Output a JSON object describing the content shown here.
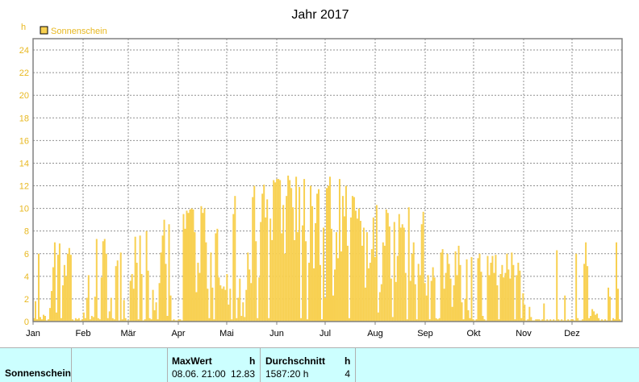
{
  "chart_data": {
    "type": "bar",
    "title": "Jahr 2017",
    "ylabel": "h",
    "ylim": [
      0,
      25
    ],
    "yticks": [
      0,
      2,
      4,
      6,
      8,
      10,
      12,
      14,
      16,
      18,
      20,
      22,
      24
    ],
    "months": [
      "Jan",
      "Feb",
      "Mär",
      "Apr",
      "Mai",
      "Jun",
      "Jul",
      "Aug",
      "Sep",
      "Okt",
      "Nov",
      "Dez"
    ],
    "grid": true,
    "legend_position": "top-left",
    "series": [
      {
        "name": "Sonnenschein",
        "color": "#f8d050",
        "note_resolution": "daily totals (hourly spikes in original)",
        "values": [
          0.3,
          1.8,
          0.2,
          6.0,
          0.4,
          0.2,
          0.6,
          0.5,
          0.1,
          0.2,
          1.2,
          2.7,
          4.8,
          7.0,
          0.8,
          5.9,
          6.9,
          0.3,
          3.2,
          5.0,
          4.0,
          6.0,
          6.5,
          5.9,
          0.2,
          0.1,
          0.3,
          0.2,
          0.3,
          0.1,
          0.2,
          0.8,
          0.3,
          2.1,
          4.1,
          0.2,
          0.5,
          0.4,
          2.2,
          7.3,
          0.3,
          0.2,
          3.9,
          7.1,
          7.3,
          6.0,
          0.3,
          0.9,
          2.1,
          0.3,
          0.2,
          4.9,
          5.4,
          0.1,
          6.1,
          0.2,
          1.9,
          0.3,
          0.1,
          0.1,
          3.6,
          4.2,
          2.9,
          7.5,
          5.2,
          0.2,
          7.6,
          4.2,
          0.1,
          0.2,
          8.0,
          4.5,
          0.3,
          0.2,
          2.8,
          1.0,
          1.7,
          0.2,
          3.4,
          6.1,
          7.6,
          9.0,
          5.1,
          0.5,
          8.6,
          2.3,
          0.1,
          0.2,
          0.1,
          0.1,
          0.2,
          0.2,
          0.1,
          9.5,
          8.2,
          9.8,
          9.6,
          9.9,
          10.0,
          9.9,
          7.9,
          2.6,
          5.2,
          4.3,
          10.2,
          9.6,
          10.0,
          7.0,
          2.9,
          0.3,
          6.1,
          3.0,
          0.2,
          7.8,
          8.2,
          3.9,
          3.2,
          2.9,
          3.1,
          2.8,
          4.2,
          1.5,
          2.9,
          0.2,
          9.5,
          11.1,
          0.3,
          2.1,
          3.8,
          0.5,
          1.7,
          0.4,
          2.8,
          6.1,
          4.6,
          3.4,
          11.0,
          12.0,
          7.1,
          0.3,
          3.9,
          8.8,
          11.3,
          12.1,
          9.2,
          10.8,
          0.3,
          9.1,
          7.2,
          12.5,
          12.3,
          12.6,
          12.6,
          12.5,
          7.8,
          10.3,
          6.0,
          11.1,
          12.9,
          12.5,
          11.8,
          10.1,
          7.2,
          12.8,
          7.9,
          11.9,
          0.3,
          8.5,
          12.6,
          7.1,
          0.2,
          5.2,
          12.0,
          10.2,
          4.7,
          8.7,
          11.3,
          11.7,
          5.0,
          0.2,
          8.3,
          2.1,
          11.8,
          12.0,
          12.8,
          8.2,
          2.3,
          4.6,
          7.9,
          5.6,
          12.6,
          6.2,
          11.1,
          9.3,
          12.0,
          6.7,
          0.3,
          9.2,
          11.1,
          11.0,
          9.8,
          9.1,
          10.0,
          8.9,
          6.7,
          8.3,
          3.0,
          7.9,
          4.7,
          5.2,
          6.4,
          9.2,
          5.7,
          10.3,
          0.8,
          2.6,
          3.3,
          7.0,
          6.7,
          9.9,
          9.6,
          8.4,
          3.8,
          0.4,
          8.8,
          3.5,
          5.8,
          9.5,
          8.3,
          8.6,
          8.3,
          4.3,
          0.2,
          10.1,
          3.6,
          6.0,
          7.0,
          3.3,
          0.2,
          5.1,
          4.1,
          8.6,
          9.7,
          3.4,
          2.3,
          4.1,
          0.2,
          3.6,
          4.8,
          3.9,
          0.3,
          0.2,
          0.3,
          6.1,
          6.4,
          2.9,
          4.3,
          6.0,
          5.1,
          3.8,
          1.3,
          3.2,
          6.2,
          4.1,
          6.7,
          5.0,
          1.7,
          0.2,
          2.0,
          5.5,
          1.0,
          0.3,
          5.7,
          0.2,
          0.1,
          0.2,
          5.6,
          6.0,
          4.4,
          0.5,
          0.2,
          0.1,
          5.8,
          4.1,
          5.2,
          5.8,
          4.3,
          5.9,
          3.2,
          0.2,
          4.2,
          5.0,
          3.9,
          4.3,
          6.0,
          4.6,
          3.8,
          6.1,
          5.0,
          0.2,
          4.1,
          5.2,
          4.5,
          0.3,
          2.5,
          1.5,
          0.1,
          0.2,
          1.3,
          0.4,
          0.1,
          0.1,
          0.2,
          0.2,
          0.2,
          0.1,
          0.2,
          1.6,
          0.1,
          0.2,
          0.1,
          0.2,
          0.1,
          0.2,
          0.1,
          6.3,
          0.2,
          0.1,
          0.2,
          0.1,
          2.3,
          0.1,
          0.2,
          0.1,
          0.2,
          0.2,
          0.1,
          6.0,
          0.3,
          0.1,
          0.1,
          0.2,
          5.1,
          7.0,
          4.9,
          0.3,
          0.5,
          1.1,
          0.9,
          0.6,
          0.7,
          0.3,
          0.1,
          0.2,
          0.1,
          0.2,
          0.1,
          3.0,
          2.2,
          0.1,
          0.3,
          0.2,
          7.0,
          2.9,
          0.2,
          0.1
        ]
      }
    ]
  },
  "stats": {
    "row_label": "Sonnenschein",
    "max": {
      "title": "MaxWert",
      "unit": "h",
      "time": "08.06.  21:00",
      "value": "12.83"
    },
    "avg": {
      "title": "Durchschnitt",
      "unit": "h",
      "total": "1587:20 h",
      "value": "4"
    }
  }
}
